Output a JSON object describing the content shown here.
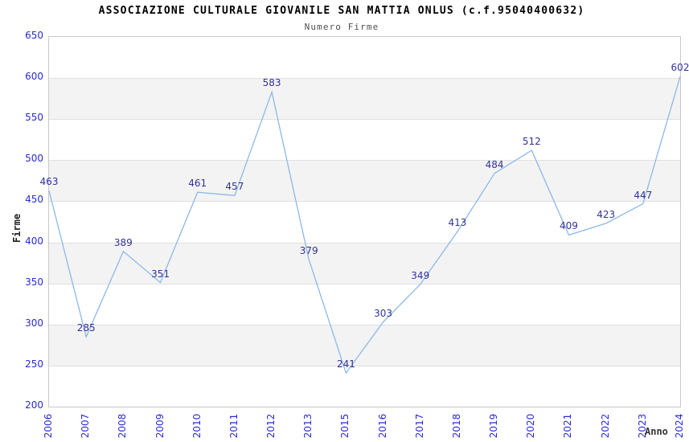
{
  "chart_data": {
    "type": "line",
    "title": "ASSOCIAZIONE CULTURALE GIOVANILE SAN MATTIA ONLUS (c.f.95040400632)",
    "subtitle": "Numero Firme",
    "xlabel": "Anno",
    "ylabel": "Firme",
    "x": [
      "2006",
      "2007",
      "2008",
      "2009",
      "2010",
      "2011",
      "2012",
      "2013",
      "2015",
      "2016",
      "2017",
      "2018",
      "2019",
      "2020",
      "2021",
      "2022",
      "2023",
      "2024"
    ],
    "values": [
      463,
      285,
      389,
      351,
      461,
      457,
      583,
      379,
      241,
      303,
      349,
      413,
      484,
      512,
      409,
      423,
      447,
      602
    ],
    "ylim": [
      200,
      650
    ],
    "ytick_step": 50,
    "yticks": [
      650,
      600,
      550,
      500,
      450,
      400,
      350,
      300,
      250,
      200
    ],
    "grid": true,
    "legend": "none",
    "band_fill": "alternating horizontal white/gray",
    "colors": {
      "line": "#8cb8ea",
      "tick_label": "#2a2ad4",
      "point_label": "#32329b",
      "band_gray": "#f3f3f3",
      "gridline": "#e0e0e0",
      "plot_border": "#c9c9c9",
      "title": "#000000",
      "subtitle": "#4f4f4f",
      "axis_title": "#222222"
    }
  }
}
